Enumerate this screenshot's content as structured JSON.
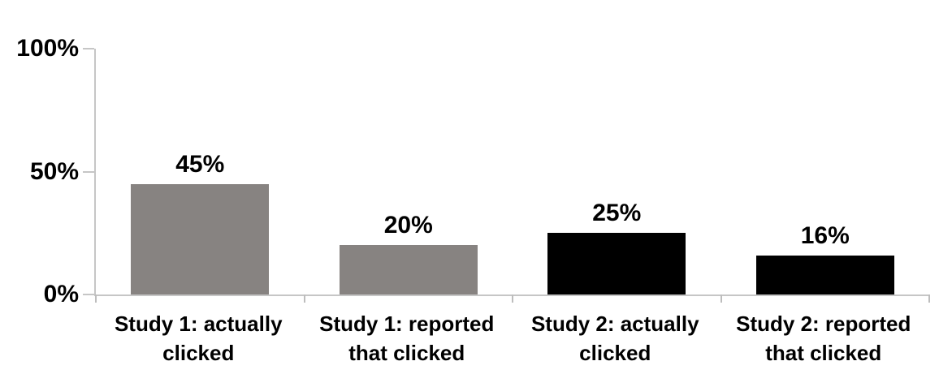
{
  "chart_data": {
    "type": "bar",
    "title": "",
    "xlabel": "",
    "ylabel": "",
    "categories": [
      "Study 1: actually clicked",
      "Study 1: reported that clicked",
      "Study 2: actually clicked",
      "Study 2: reported that clicked"
    ],
    "values": [
      45,
      20,
      25,
      16
    ],
    "value_labels": [
      "45%",
      "20%",
      "25%",
      "16%"
    ],
    "bar_colors": [
      "#878381",
      "#878381",
      "#000000",
      "#000000"
    ],
    "ylim": [
      0,
      100
    ],
    "yticks": [
      {
        "value": 0,
        "label": "0%"
      },
      {
        "value": 50,
        "label": "50%"
      },
      {
        "value": 100,
        "label": "100%"
      }
    ],
    "grid": false,
    "legend": false,
    "axis_color": "#c6c6c6",
    "text_color": "#000000",
    "background_color": "#ffffff"
  }
}
